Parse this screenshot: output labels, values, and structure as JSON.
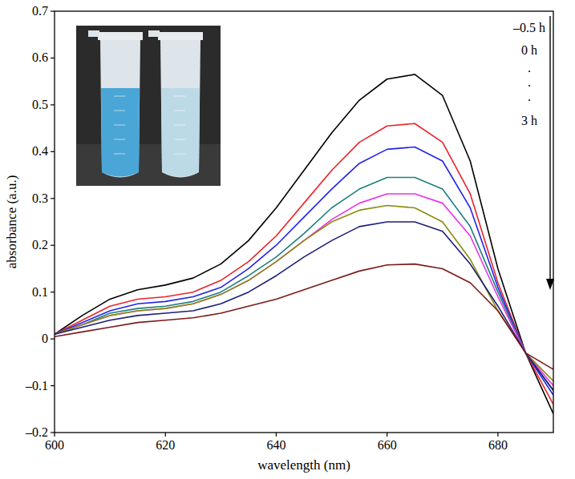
{
  "chart_data": {
    "type": "line",
    "x_label": "wavelength (nm)",
    "y_label": "absorbance (a.u.)",
    "annotations": [
      "–0.5 h",
      "0 h",
      ".",
      ".",
      ".",
      "3 h"
    ],
    "xlim": [
      600,
      690
    ],
    "ylim": [
      -0.2,
      0.7
    ],
    "xticks": [
      600,
      620,
      640,
      660,
      680
    ],
    "yticks": [
      {
        "value": -0.2,
        "label": "–0.2"
      },
      {
        "value": -0.1,
        "label": "–0.1"
      },
      0,
      0.1,
      0.2,
      0.3,
      0.4,
      0.5,
      0.6,
      0.7
    ],
    "x": [
      600,
      605,
      610,
      615,
      620,
      625,
      630,
      635,
      640,
      645,
      650,
      655,
      660,
      665,
      670,
      675,
      680,
      685,
      690
    ],
    "series": [
      {
        "color": "#000000",
        "values": [
          0.01,
          0.05,
          0.085,
          0.105,
          0.115,
          0.13,
          0.16,
          0.21,
          0.28,
          0.36,
          0.44,
          0.51,
          0.555,
          0.565,
          0.52,
          0.38,
          0.15,
          -0.03,
          -0.16
        ]
      },
      {
        "color": "#e8242a",
        "values": [
          0.01,
          0.04,
          0.07,
          0.085,
          0.09,
          0.1,
          0.125,
          0.165,
          0.22,
          0.29,
          0.36,
          0.42,
          0.455,
          0.46,
          0.42,
          0.31,
          0.12,
          -0.03,
          -0.14
        ]
      },
      {
        "color": "#2323e6",
        "values": [
          0.01,
          0.035,
          0.06,
          0.075,
          0.08,
          0.09,
          0.11,
          0.15,
          0.2,
          0.26,
          0.32,
          0.375,
          0.405,
          0.41,
          0.38,
          0.28,
          0.11,
          -0.03,
          -0.12
        ]
      },
      {
        "color": "#1a8080",
        "values": [
          0.01,
          0.03,
          0.055,
          0.065,
          0.07,
          0.08,
          0.1,
          0.135,
          0.175,
          0.225,
          0.28,
          0.32,
          0.345,
          0.345,
          0.32,
          0.24,
          0.1,
          -0.03,
          -0.11
        ]
      },
      {
        "color": "#e832e8",
        "values": [
          0.01,
          0.03,
          0.05,
          0.06,
          0.065,
          0.075,
          0.095,
          0.125,
          0.165,
          0.21,
          0.255,
          0.29,
          0.31,
          0.31,
          0.29,
          0.22,
          0.09,
          -0.03,
          -0.1
        ]
      },
      {
        "color": "#8b8b10",
        "values": [
          0.01,
          0.03,
          0.05,
          0.06,
          0.065,
          0.075,
          0.095,
          0.125,
          0.165,
          0.21,
          0.25,
          0.275,
          0.285,
          0.28,
          0.25,
          0.17,
          0.06,
          -0.03,
          -0.09
        ]
      },
      {
        "color": "#1c1c7a",
        "values": [
          0.01,
          0.025,
          0.04,
          0.05,
          0.055,
          0.06,
          0.075,
          0.1,
          0.135,
          0.175,
          0.21,
          0.24,
          0.25,
          0.25,
          0.23,
          0.16,
          0.07,
          -0.03,
          -0.11
        ]
      },
      {
        "color": "#7a1a1a",
        "values": [
          0.005,
          0.015,
          0.025,
          0.035,
          0.04,
          0.045,
          0.055,
          0.07,
          0.085,
          0.105,
          0.125,
          0.145,
          0.158,
          0.16,
          0.15,
          0.12,
          0.06,
          -0.03,
          -0.065
        ]
      }
    ]
  }
}
